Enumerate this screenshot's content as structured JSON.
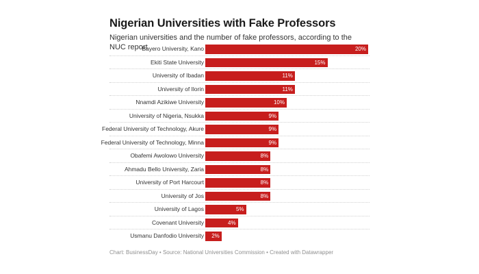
{
  "header": {
    "title": "Nigerian Universities with Fake Professors",
    "subtitle": "Nigerian universities and the number of fake professors, according to the NUC report"
  },
  "footer": {
    "text": "Chart: BusinessDay • Source: National Universities Commission • Created with Datawrapper"
  },
  "colors": {
    "bar": "#c71e1d",
    "label_text": "#333333",
    "value_text": "#ffffff",
    "footer_text": "#909090"
  },
  "chart_data": {
    "type": "bar",
    "orientation": "horizontal",
    "title": "Nigerian Universities with Fake Professors",
    "subtitle": "Nigerian universities and the number of fake professors, according to the NUC report",
    "xlabel": "",
    "ylabel": "",
    "unit": "%",
    "xlim": [
      0,
      20
    ],
    "grid": false,
    "legend": null,
    "categories": [
      "Bayero University, Kano",
      "Ekiti State University",
      "University of Ibadan",
      "University of Ilorin",
      "Nnamdi Azikiwe University",
      "University of Nigeria, Nsukka",
      "Federal University of Technology, Akure",
      "Federal University of Technology, Minna",
      "Obafemi Awolowo University",
      "Ahmadu Bello University, Zaria",
      "University of Port Harcourt",
      "University of Jos",
      "University of Lagos",
      "Covenant University",
      "Usmanu Danfodio University"
    ],
    "values": [
      20,
      15,
      11,
      11,
      10,
      9,
      9,
      9,
      8,
      8,
      8,
      8,
      5,
      4,
      2
    ],
    "value_labels": [
      "20%",
      "15%",
      "11%",
      "11%",
      "10%",
      "9%",
      "9%",
      "9%",
      "8%",
      "8%",
      "8%",
      "8%",
      "5%",
      "4%",
      "2%"
    ],
    "source": "Chart: BusinessDay • Source: National Universities Commission • Created with Datawrapper"
  }
}
